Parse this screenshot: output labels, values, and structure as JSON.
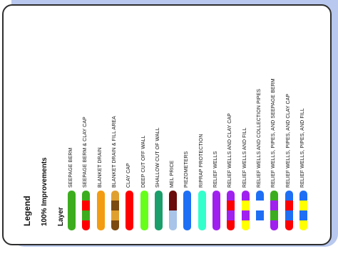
{
  "legend": {
    "title": "Legend",
    "subtitle": "100% Improvements",
    "layer_heading": "Layer"
  },
  "items": [
    {
      "label": "SEEPAGE BERM",
      "colors": [
        "#3cad1e"
      ]
    },
    {
      "label": "SEEPAGE BERM & CLAY CAP",
      "colors": [
        "#3cad1e",
        "#ff0000",
        "#3cad1e",
        "#ff0000"
      ]
    },
    {
      "label": "BLANKET DRAIN",
      "colors": [
        "#f39c12"
      ]
    },
    {
      "label": "BLANKET DRAIN & FILL AREA",
      "colors": [
        "#e0a030",
        "#7b4a10",
        "#e0a030",
        "#7b4a10"
      ]
    },
    {
      "label": "CLAY CAP",
      "colors": [
        "#ff0000"
      ]
    },
    {
      "label": "DEEP CUT OFF WALL",
      "colors": [
        "#66ff1a"
      ]
    },
    {
      "label": "SHALLOW CUT OF WALL",
      "colors": [
        "#1a9e6a"
      ]
    },
    {
      "label": "MEL PRICE",
      "colors": [
        "#6b0b0b",
        "#a8c4e8"
      ]
    },
    {
      "label": "PIEZOMETERS",
      "colors": [
        "#1f6ff5"
      ]
    },
    {
      "label": "RIPRAP PROTECTION",
      "colors": [
        "#33ffcc"
      ]
    },
    {
      "label": "RELIEF WELLS",
      "colors": [
        "#a020f0"
      ]
    },
    {
      "label": "RELIEF WELLS AND CLAY CAP",
      "colors": [
        "#a020f0",
        "#ff0000",
        "#a020f0",
        "#ff0000"
      ]
    },
    {
      "label": "RELIEF WELLS AND FILL",
      "colors": [
        "#a020f0",
        "#ffff00",
        "#a020f0",
        "#ffff00"
      ]
    },
    {
      "label": "RELIEF WELLS AND COLLECTION PIPES",
      "colors": [
        "#1f6ff5",
        "#ffffff",
        "#1f6ff5",
        "#ffffff"
      ]
    },
    {
      "label": "RELIEF WELLS, PIPES, AND SEEPAGE BERM",
      "colors": [
        "#3cad1e",
        "#a020f0",
        "#3cad1e",
        "#a020f0"
      ]
    },
    {
      "label": "RELIEF WELLS, PIPES, AND CLAY CAP",
      "colors": [
        "#1f6ff5",
        "#ff0000",
        "#1f6ff5",
        "#ff0000"
      ]
    },
    {
      "label": "RELIEF WELLS, PIPES, AND FILL",
      "colors": [
        "#1f6ff5",
        "#ffff00",
        "#1f6ff5",
        "#ffff00"
      ]
    }
  ]
}
